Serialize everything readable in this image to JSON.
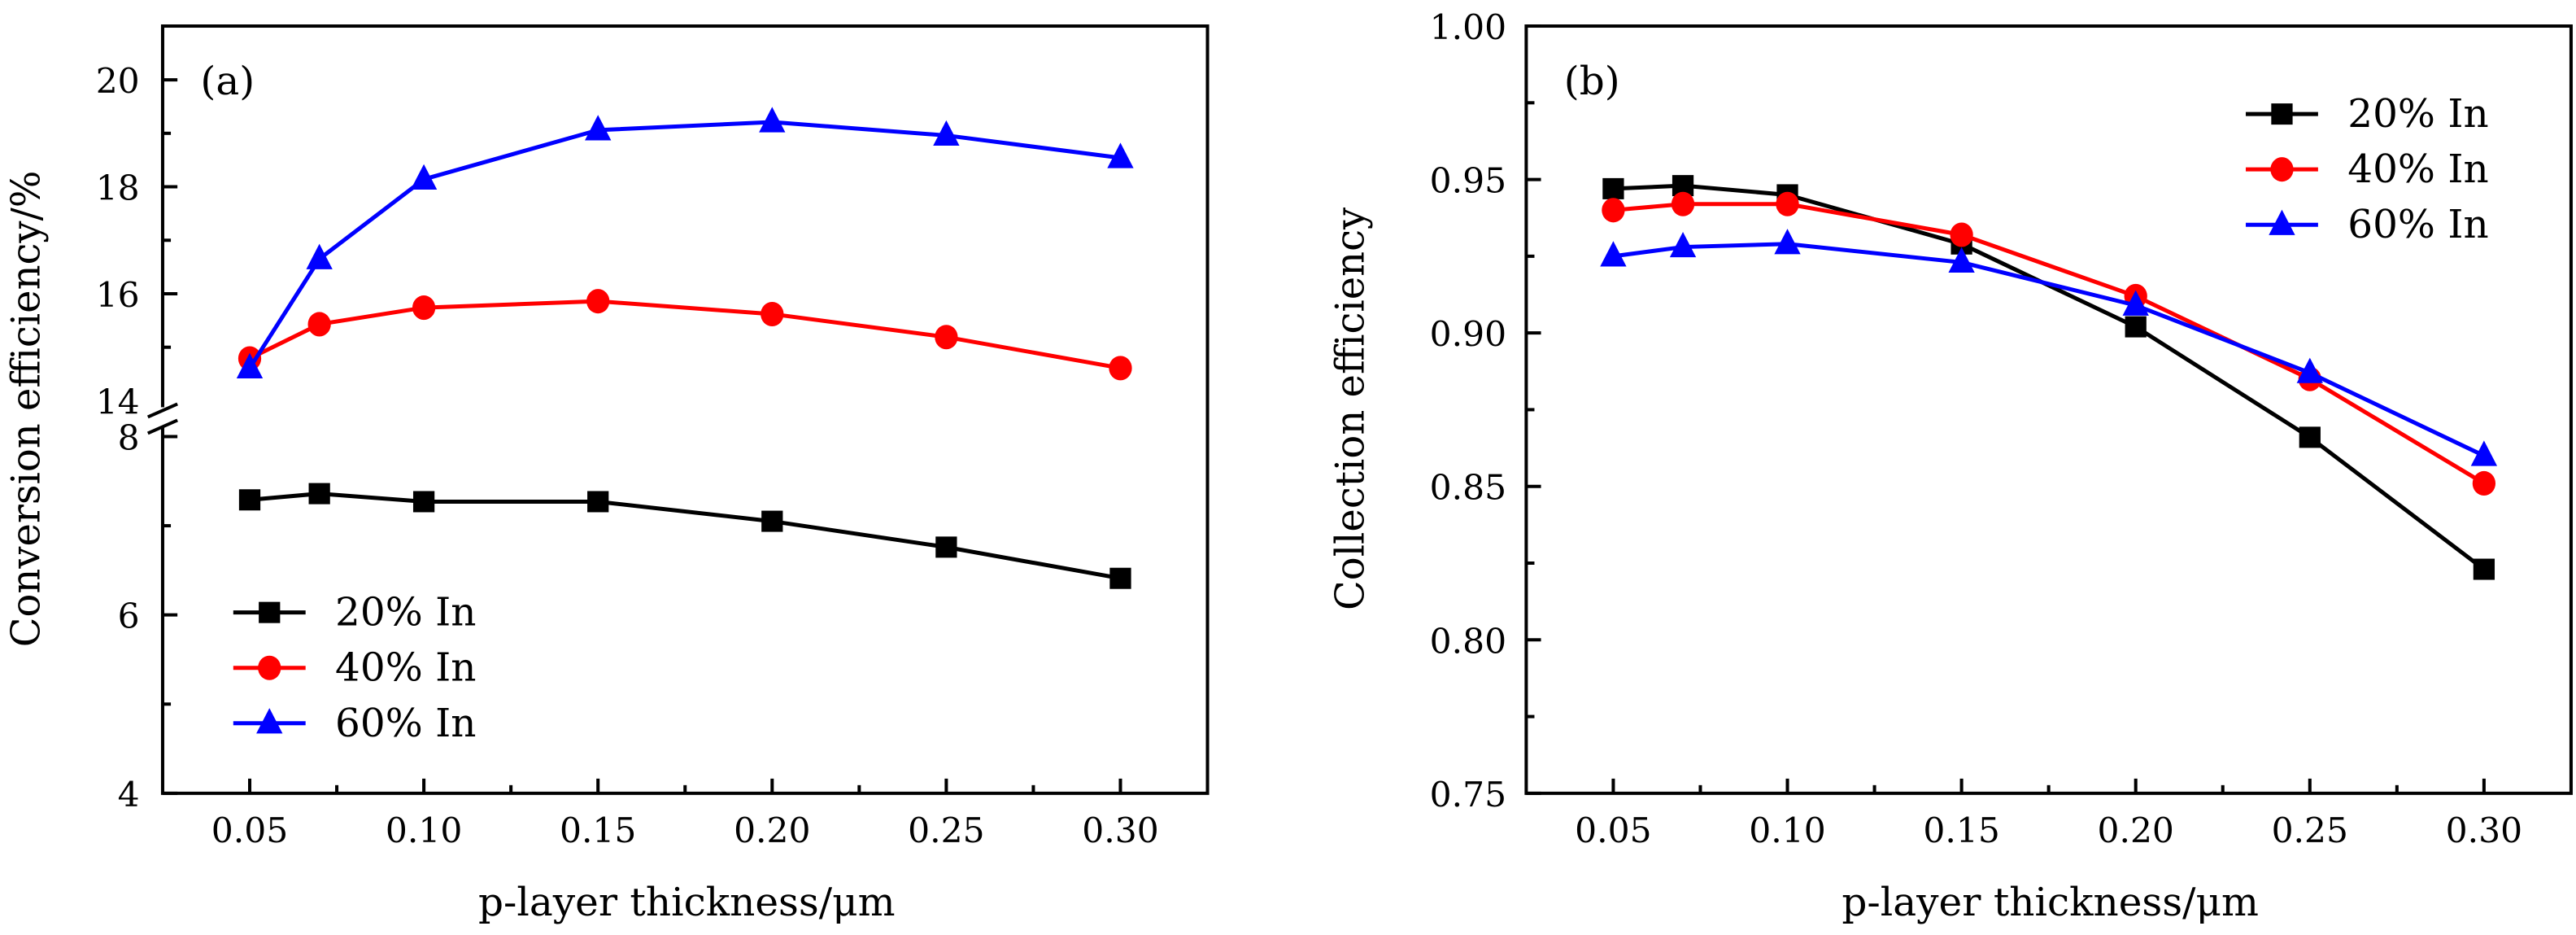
{
  "colors": {
    "series_20": "#000000",
    "series_40": "#ff0000",
    "series_60": "#0000ff"
  },
  "chart_data": [
    {
      "type": "line",
      "panel_label": "(a)",
      "title": "",
      "xlabel": "p-layer thickness/μm",
      "ylabel": "Conversion efficiency/%",
      "x": [
        0.05,
        0.07,
        0.1,
        0.15,
        0.2,
        0.25,
        0.3
      ],
      "xlim": [
        0.025,
        0.325
      ],
      "xticks": [
        0.05,
        0.1,
        0.15,
        0.2,
        0.25,
        0.3
      ],
      "xtick_labels": [
        "0.05",
        "0.10",
        "0.15",
        "0.20",
        "0.25",
        "0.30"
      ],
      "xminor_ticks": [
        0.075,
        0.125,
        0.175,
        0.225,
        0.275
      ],
      "y_axis_break": true,
      "ylim_lower": [
        4,
        8.1
      ],
      "ylim_upper": [
        13.9,
        21
      ],
      "yticks_lower": [
        4,
        6,
        8
      ],
      "ytick_labels_lower": [
        "4",
        "6",
        "8"
      ],
      "yminor_ticks_lower": [
        5,
        7
      ],
      "yticks_upper": [
        14,
        16,
        18,
        20
      ],
      "ytick_labels_upper": [
        "14",
        "16",
        "18",
        "20"
      ],
      "yminor_ticks_upper": [
        15,
        17,
        19
      ],
      "grid": false,
      "legend_position": "bottom-left",
      "series": [
        {
          "name": "20% In",
          "marker": "square",
          "color": "#000000",
          "values": [
            7.29,
            7.36,
            7.27,
            7.27,
            7.05,
            6.76,
            6.41
          ]
        },
        {
          "name": "40% In",
          "marker": "circle",
          "color": "#ff0000",
          "values": [
            14.79,
            15.43,
            15.74,
            15.86,
            15.62,
            15.19,
            14.61
          ]
        },
        {
          "name": "60% In",
          "marker": "triangle",
          "color": "#0000ff",
          "values": [
            14.61,
            16.65,
            18.14,
            19.06,
            19.21,
            18.96,
            18.54
          ]
        }
      ]
    },
    {
      "type": "line",
      "panel_label": "(b)",
      "title": "",
      "xlabel": "p-layer thickness/μm",
      "ylabel": "Collection efficiency",
      "x": [
        0.05,
        0.07,
        0.1,
        0.15,
        0.2,
        0.25,
        0.3
      ],
      "xlim": [
        0.025,
        0.325
      ],
      "xticks": [
        0.05,
        0.1,
        0.15,
        0.2,
        0.25,
        0.3
      ],
      "xtick_labels": [
        "0.05",
        "0.10",
        "0.15",
        "0.20",
        "0.25",
        "0.30"
      ],
      "xminor_ticks": [
        0.075,
        0.125,
        0.175,
        0.225,
        0.275
      ],
      "ylim": [
        0.75,
        1.0
      ],
      "yticks": [
        0.75,
        0.8,
        0.85,
        0.9,
        0.95,
        1.0
      ],
      "ytick_labels": [
        "0.75",
        "0.80",
        "0.85",
        "0.90",
        "0.95",
        "1.00"
      ],
      "yminor_ticks": [
        0.775,
        0.825,
        0.875,
        0.925,
        0.975
      ],
      "grid": false,
      "legend_position": "top-right",
      "series": [
        {
          "name": "20% In",
          "marker": "square",
          "color": "#000000",
          "values": [
            0.947,
            0.948,
            0.945,
            0.929,
            0.902,
            0.866,
            0.823
          ]
        },
        {
          "name": "40% In",
          "marker": "circle",
          "color": "#ff0000",
          "values": [
            0.94,
            0.942,
            0.942,
            0.932,
            0.912,
            0.885,
            0.851
          ]
        },
        {
          "name": "60% In",
          "marker": "triangle",
          "color": "#0000ff",
          "values": [
            0.925,
            0.928,
            0.929,
            0.923,
            0.909,
            0.887,
            0.86
          ]
        }
      ]
    }
  ]
}
